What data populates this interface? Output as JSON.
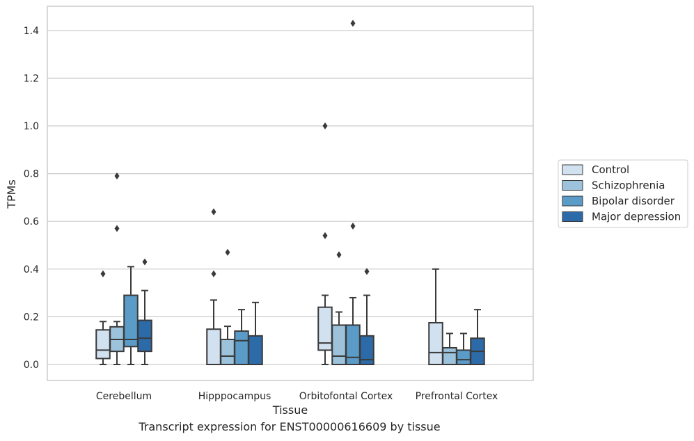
{
  "chart_data": {
    "type": "box",
    "title": "",
    "xlabel": "Tissue",
    "ylabel": "TPMs",
    "ylim": [
      -0.07,
      1.5
    ],
    "yticks": [
      0.0,
      0.2,
      0.4,
      0.6,
      0.8,
      1.0,
      1.2,
      1.4
    ],
    "grid": "horizontal",
    "legend_placement": "right",
    "categories": [
      "Cerebellum",
      "Hipppocampus",
      "Orbitofontal Cortex",
      "Prefrontal Cortex"
    ],
    "series": [
      {
        "name": "Control",
        "color": "#d1e1f0",
        "boxes": [
          {
            "whislo": 0.0,
            "q1": 0.025,
            "med": 0.06,
            "q3": 0.145,
            "whishi": 0.18,
            "fliers": [
              0.38
            ]
          },
          {
            "whislo": 0.0,
            "q1": 0.0,
            "med": 0.0,
            "q3": 0.148,
            "whishi": 0.27,
            "fliers": [
              0.38,
              0.64
            ]
          },
          {
            "whislo": 0.0,
            "q1": 0.06,
            "med": 0.09,
            "q3": 0.24,
            "whishi": 0.29,
            "fliers": [
              0.54,
              1.0
            ]
          },
          {
            "whislo": 0.0,
            "q1": 0.0,
            "med": 0.05,
            "q3": 0.175,
            "whishi": 0.4,
            "fliers": []
          }
        ]
      },
      {
        "name": "Schizophrenia",
        "color": "#9dc3dc",
        "boxes": [
          {
            "whislo": 0.0,
            "q1": 0.055,
            "med": 0.105,
            "q3": 0.158,
            "whishi": 0.18,
            "fliers": [
              0.57,
              0.79
            ]
          },
          {
            "whislo": 0.0,
            "q1": 0.0,
            "med": 0.035,
            "q3": 0.105,
            "whishi": 0.16,
            "fliers": [
              0.47
            ]
          },
          {
            "whislo": 0.0,
            "q1": 0.0,
            "med": 0.035,
            "q3": 0.165,
            "whishi": 0.22,
            "fliers": [
              0.46
            ]
          },
          {
            "whislo": 0.0,
            "q1": 0.0,
            "med": 0.05,
            "q3": 0.07,
            "whishi": 0.13,
            "fliers": []
          }
        ]
      },
      {
        "name": "Bipolar disorder",
        "color": "#5a9bc8",
        "boxes": [
          {
            "whislo": 0.0,
            "q1": 0.075,
            "med": 0.105,
            "q3": 0.29,
            "whishi": 0.41,
            "fliers": []
          },
          {
            "whislo": 0.0,
            "q1": 0.0,
            "med": 0.1,
            "q3": 0.14,
            "whishi": 0.23,
            "fliers": []
          },
          {
            "whislo": 0.0,
            "q1": 0.0,
            "med": 0.03,
            "q3": 0.165,
            "whishi": 0.28,
            "fliers": [
              0.58,
              1.43
            ]
          },
          {
            "whislo": 0.0,
            "q1": 0.0,
            "med": 0.02,
            "q3": 0.06,
            "whishi": 0.13,
            "fliers": []
          }
        ]
      },
      {
        "name": "Major depression",
        "color": "#2d6aa8",
        "boxes": [
          {
            "whislo": 0.0,
            "q1": 0.055,
            "med": 0.11,
            "q3": 0.185,
            "whishi": 0.31,
            "fliers": [
              0.43
            ]
          },
          {
            "whislo": 0.0,
            "q1": 0.0,
            "med": 0.0,
            "q3": 0.12,
            "whishi": 0.26,
            "fliers": []
          },
          {
            "whislo": 0.0,
            "q1": 0.0,
            "med": 0.02,
            "q3": 0.12,
            "whishi": 0.29,
            "fliers": [
              0.39
            ]
          },
          {
            "whislo": 0.0,
            "q1": 0.0,
            "med": 0.055,
            "q3": 0.11,
            "whishi": 0.23,
            "fliers": []
          }
        ]
      }
    ]
  },
  "caption": "Transcript expression for ENST00000616609 by tissue"
}
